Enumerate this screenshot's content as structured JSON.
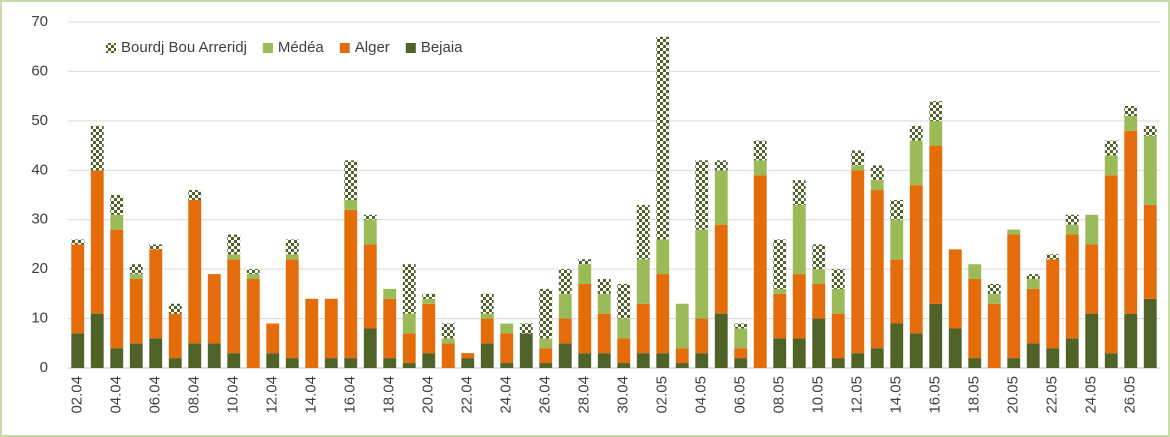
{
  "chart_data": {
    "type": "stacked_bar",
    "categories": [
      "02.04",
      null,
      "04.04",
      null,
      "06.04",
      null,
      "08.04",
      null,
      "10.04",
      null,
      "12.04",
      null,
      "14.04",
      null,
      "16.04",
      null,
      "18.04",
      null,
      "20.04",
      null,
      "22.04",
      null,
      "24.04",
      null,
      "26.04",
      null,
      "28.04",
      null,
      "30.04",
      null,
      "02.05",
      null,
      "04.05",
      null,
      "06.05",
      null,
      "08.05",
      null,
      "10.05",
      null,
      "12.05",
      null,
      "14.05",
      null,
      "16.05",
      null,
      "18.05",
      null,
      "20.05",
      null,
      "22.05",
      null,
      "24.05",
      null,
      "26.05",
      null
    ],
    "series": [
      {
        "name": "Bourdj Bou Arreridj",
        "color": "#4f6228",
        "pattern": "checker",
        "values": [
          1,
          9,
          4,
          2,
          1,
          2,
          2,
          0,
          4,
          1,
          0,
          3,
          0,
          0,
          8,
          1,
          0,
          10,
          1,
          3,
          0,
          4,
          0,
          2,
          10,
          5,
          1,
          3,
          7,
          11,
          41,
          0,
          14,
          2,
          1,
          4,
          10,
          5,
          5,
          4,
          3,
          3,
          4,
          3,
          4,
          0,
          0,
          2,
          0,
          1,
          1,
          2,
          0,
          3,
          2,
          2
        ]
      },
      {
        "name": "Médéa",
        "color": "#9bbb59",
        "values": [
          0,
          0,
          3,
          1,
          0,
          0,
          0,
          0,
          1,
          1,
          0,
          1,
          0,
          0,
          2,
          5,
          2,
          4,
          1,
          1,
          0,
          1,
          2,
          0,
          2,
          5,
          4,
          4,
          4,
          9,
          7,
          9,
          18,
          11,
          4,
          3,
          1,
          14,
          3,
          5,
          1,
          2,
          8,
          9,
          5,
          0,
          3,
          2,
          1,
          2,
          0,
          2,
          6,
          4,
          3,
          14
        ]
      },
      {
        "name": "Alger",
        "color": "#e46c0a",
        "values": [
          18,
          29,
          24,
          13,
          18,
          9,
          29,
          14,
          19,
          18,
          6,
          20,
          14,
          12,
          30,
          17,
          12,
          6,
          10,
          5,
          1,
          5,
          6,
          0,
          3,
          5,
          14,
          8,
          5,
          10,
          16,
          3,
          7,
          18,
          2,
          39,
          9,
          13,
          7,
          9,
          37,
          32,
          13,
          30,
          32,
          16,
          16,
          13,
          25,
          11,
          18,
          21,
          14,
          36,
          37,
          19
        ]
      },
      {
        "name": "Bejaia",
        "color": "#4f6228",
        "values": [
          7,
          11,
          4,
          5,
          6,
          2,
          5,
          5,
          3,
          0,
          3,
          2,
          0,
          2,
          2,
          8,
          2,
          1,
          3,
          0,
          2,
          5,
          1,
          7,
          1,
          5,
          3,
          3,
          1,
          3,
          3,
          1,
          3,
          11,
          2,
          0,
          6,
          6,
          10,
          2,
          3,
          4,
          9,
          7,
          13,
          8,
          2,
          0,
          2,
          5,
          4,
          6,
          11,
          3,
          11,
          14
        ]
      }
    ],
    "ylim": [
      0,
      70
    ],
    "yticks": [
      0,
      10,
      20,
      30,
      40,
      50,
      60,
      70
    ],
    "grid": true,
    "legend": "top-left"
  }
}
